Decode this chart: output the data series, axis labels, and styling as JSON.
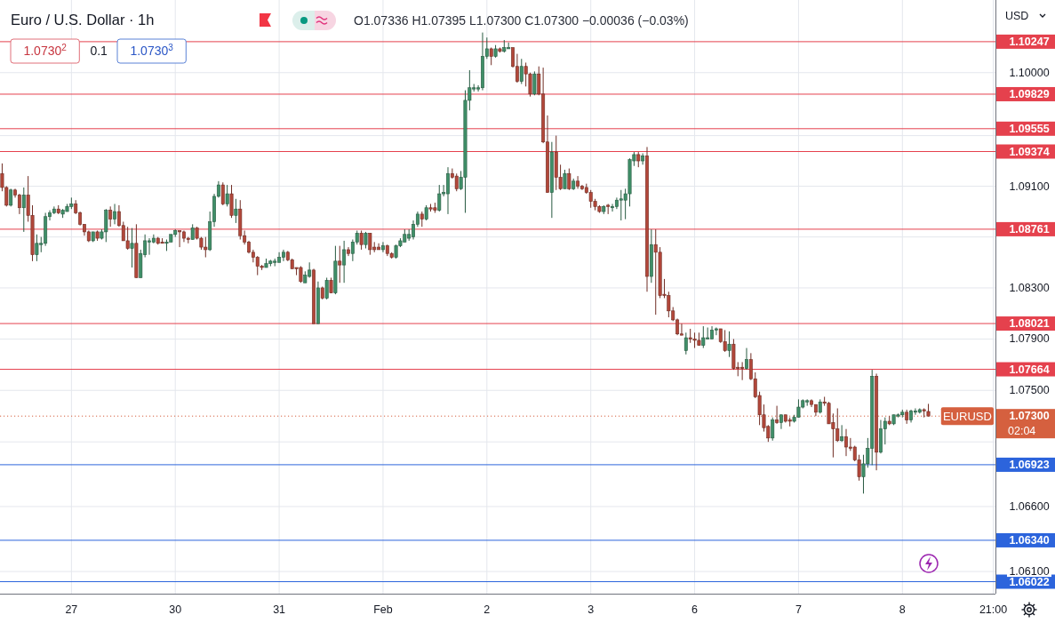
{
  "chart_data": {
    "type": "candlestick",
    "title": "Euro / U.S. Dollar · 1h",
    "subtitle": "O1.07336 H1.07395 L1.07300 C1.07300 −0.00036 (−0.03%)",
    "ylabel": "USD",
    "categories": [
      null,
      null,
      null,
      null,
      null,
      null,
      null,
      null,
      null,
      null,
      null,
      null,
      null,
      null,
      null,
      null,
      "27",
      null,
      null,
      null,
      null,
      null,
      null,
      null,
      null,
      null,
      null,
      null,
      null,
      null,
      null,
      null,
      null,
      null,
      null,
      null,
      null,
      null,
      null,
      null,
      "30",
      null,
      null,
      null,
      null,
      null,
      null,
      null,
      null,
      null,
      null,
      null,
      null,
      null,
      null,
      null,
      null,
      null,
      null,
      null,
      null,
      null,
      null,
      null,
      "31",
      null,
      null,
      null,
      null,
      null,
      null,
      null,
      null,
      null,
      null,
      null,
      null,
      null,
      null,
      null,
      null,
      null,
      null,
      null,
      null,
      null,
      null,
      null,
      "Feb",
      null,
      null,
      null,
      null,
      null,
      null,
      null,
      null,
      null,
      null,
      null,
      null,
      null,
      null,
      null,
      null,
      null,
      null,
      null,
      null,
      null,
      null,
      null,
      "2",
      null,
      null,
      null,
      null,
      null,
      null,
      null,
      null,
      null,
      null,
      null,
      null,
      null,
      null,
      null,
      null,
      null,
      null,
      null,
      null,
      null,
      null,
      null,
      "3",
      null,
      null,
      null,
      null,
      null,
      null,
      null,
      null,
      null,
      null,
      null,
      null,
      null,
      null,
      null,
      null,
      null,
      null,
      null,
      null,
      null,
      null,
      null,
      "6",
      null,
      null,
      null,
      null,
      null,
      null,
      null,
      null,
      null,
      null,
      null,
      null,
      null,
      null,
      null,
      null,
      null,
      null,
      null,
      null,
      null,
      null,
      null,
      "7",
      null,
      null,
      null,
      null,
      null,
      null,
      null,
      null,
      null,
      null,
      null,
      null,
      null,
      null,
      null,
      null,
      null,
      null,
      null,
      null,
      null,
      null,
      null,
      "8",
      null,
      null,
      null,
      null,
      null,
      null,
      null,
      null,
      null,
      null,
      null,
      null,
      null,
      null,
      null,
      null,
      null,
      null,
      null,
      null,
      "21:00"
    ],
    "ohlc": [
      [
        1.092,
        1.0928,
        1.0906,
        1.0909
      ],
      [
        1.0909,
        1.091,
        1.0894,
        1.0895
      ],
      [
        1.0895,
        1.0908,
        1.0894,
        1.0907
      ],
      [
        1.0907,
        1.0908,
        1.0901,
        1.0903
      ],
      [
        1.0903,
        1.0904,
        1.0888,
        1.0893
      ],
      [
        1.0893,
        1.0909,
        1.0874,
        1.0903
      ],
      [
        1.0903,
        1.0918,
        1.0882,
        1.0887
      ],
      [
        1.0887,
        1.0895,
        1.0851,
        1.0856
      ],
      [
        1.0856,
        1.0872,
        1.0851,
        1.0865
      ],
      [
        1.0864,
        1.087,
        1.0858,
        1.0865
      ],
      [
        1.0865,
        1.0889,
        1.0863,
        1.0886
      ],
      [
        1.0886,
        1.0891,
        1.0883,
        1.0889
      ],
      [
        1.0889,
        1.0894,
        1.0888,
        1.0892
      ],
      [
        1.0892,
        1.0895,
        1.0888,
        1.0889
      ],
      [
        1.0888,
        1.0892,
        1.0885,
        1.0891
      ],
      [
        1.089,
        1.0896,
        1.089,
        1.0894
      ],
      [
        1.0894,
        1.0901,
        1.0892,
        1.0896
      ],
      [
        1.0896,
        1.0899,
        1.0888,
        1.0889
      ],
      [
        1.0889,
        1.089,
        1.0879,
        1.088
      ],
      [
        1.088,
        1.088,
        1.0871,
        1.0874
      ],
      [
        1.0874,
        1.0875,
        1.0866,
        1.0867
      ],
      [
        1.0867,
        1.0874,
        1.0866,
        1.0874
      ],
      [
        1.0874,
        1.0875,
        1.0867,
        1.0869
      ],
      [
        1.0869,
        1.0876,
        1.0868,
        1.0874
      ],
      [
        1.0874,
        1.0892,
        1.0866,
        1.0891
      ],
      [
        1.0891,
        1.0894,
        1.0878,
        1.0884
      ],
      [
        1.0884,
        1.0896,
        1.088,
        1.089
      ],
      [
        1.089,
        1.0895,
        1.0878,
        1.0879
      ],
      [
        1.0879,
        1.0882,
        1.0867,
        1.0867
      ],
      [
        1.0867,
        1.0878,
        1.086,
        1.0861
      ],
      [
        1.0861,
        1.0877,
        1.0846,
        1.0865
      ],
      [
        1.0865,
        1.088,
        1.0838,
        1.0838
      ],
      [
        1.0838,
        1.086,
        1.0838,
        1.0857
      ],
      [
        1.0856,
        1.0872,
        1.0854,
        1.0867
      ],
      [
        1.0866,
        1.0869,
        1.0856,
        1.0867
      ],
      [
        1.0866,
        1.0872,
        1.0865,
        1.0869
      ],
      [
        1.0869,
        1.087,
        1.0864,
        1.0865
      ],
      [
        1.0866,
        1.0869,
        1.0865,
        1.0865
      ],
      [
        1.0865,
        1.0868,
        1.0859,
        1.0866
      ],
      [
        1.0866,
        1.0872,
        1.0866,
        1.0872
      ],
      [
        1.0872,
        1.0876,
        1.087,
        1.0875
      ],
      [
        1.0875,
        1.0875,
        1.0862,
        1.0874
      ],
      [
        1.0874,
        1.0875,
        1.0866,
        1.0869
      ],
      [
        1.0869,
        1.087,
        1.0865,
        1.0868
      ],
      [
        1.0868,
        1.088,
        1.0868,
        1.0877
      ],
      [
        1.0877,
        1.0878,
        1.0868,
        1.0869
      ],
      [
        1.0869,
        1.087,
        1.086,
        1.0862
      ],
      [
        1.0862,
        1.087,
        1.0854,
        1.086
      ],
      [
        1.086,
        1.089,
        1.0859,
        1.0882
      ],
      [
        1.0882,
        1.0904,
        1.0878,
        1.0902
      ],
      [
        1.0902,
        1.0914,
        1.0901,
        1.0911
      ],
      [
        1.0911,
        1.0913,
        1.0895,
        1.0896
      ],
      [
        1.0896,
        1.0911,
        1.0894,
        1.0904
      ],
      [
        1.0904,
        1.0911,
        1.0885,
        1.0887
      ],
      [
        1.0887,
        1.09,
        1.0881,
        1.0892
      ],
      [
        1.0892,
        1.0899,
        1.0868,
        1.0871
      ],
      [
        1.0871,
        1.0875,
        1.0864,
        1.0866
      ],
      [
        1.0866,
        1.0867,
        1.0857,
        1.0858
      ],
      [
        1.0858,
        1.086,
        1.085,
        1.0854
      ],
      [
        1.0854,
        1.0855,
        1.084,
        1.0847
      ],
      [
        1.0847,
        1.0848,
        1.0844,
        1.0846
      ],
      [
        1.0846,
        1.0853,
        1.0846,
        1.0849
      ],
      [
        1.0849,
        1.0852,
        1.0847,
        1.0851
      ],
      [
        1.085,
        1.0853,
        1.0847,
        1.0851
      ],
      [
        1.085,
        1.0858,
        1.085,
        1.0854
      ],
      [
        1.0854,
        1.086,
        1.0851,
        1.0858
      ],
      [
        1.0858,
        1.0859,
        1.0851,
        1.0852
      ],
      [
        1.0852,
        1.0853,
        1.0845,
        1.0845
      ],
      [
        1.0846,
        1.0846,
        1.084,
        1.0845
      ],
      [
        1.0846,
        1.0847,
        1.0834,
        1.0835
      ],
      [
        1.0834,
        1.0843,
        1.0834,
        1.084
      ],
      [
        1.0839,
        1.085,
        1.0838,
        1.0844
      ],
      [
        1.0844,
        1.0845,
        1.0802,
        1.0802
      ],
      [
        1.0802,
        1.0835,
        1.0802,
        1.083
      ],
      [
        1.083,
        1.0831,
        1.0821,
        1.0822
      ],
      [
        1.0822,
        1.0838,
        1.0821,
        1.0836
      ],
      [
        1.0836,
        1.0838,
        1.0826,
        1.0826
      ],
      [
        1.0826,
        1.0863,
        1.0825,
        1.0851
      ],
      [
        1.0851,
        1.0863,
        1.0834,
        1.0848
      ],
      [
        1.0848,
        1.0867,
        1.0834,
        1.086
      ],
      [
        1.086,
        1.0862,
        1.0855,
        1.0857
      ],
      [
        1.0857,
        1.0868,
        1.0851,
        1.0866
      ],
      [
        1.0866,
        1.0875,
        1.0864,
        1.0873
      ],
      [
        1.0873,
        1.0875,
        1.086,
        1.0864
      ],
      [
        1.0864,
        1.0874,
        1.0861,
        1.0873
      ],
      [
        1.0873,
        1.0873,
        1.0856,
        1.086
      ],
      [
        1.0862,
        1.0866,
        1.0858,
        1.086
      ],
      [
        1.0862,
        1.0865,
        1.086,
        1.086
      ],
      [
        1.086,
        1.0866,
        1.0858,
        1.0863
      ],
      [
        1.0863,
        1.0864,
        1.0855,
        1.0857
      ],
      [
        1.0857,
        1.0858,
        1.0853,
        1.0854
      ],
      [
        1.0854,
        1.0864,
        1.0853,
        1.0863
      ],
      [
        1.0863,
        1.0869,
        1.0862,
        1.0867
      ],
      [
        1.0866,
        1.0876,
        1.0866,
        1.0872
      ],
      [
        1.0869,
        1.0876,
        1.0867,
        1.0872
      ],
      [
        1.087,
        1.0883,
        1.0868,
        1.088
      ],
      [
        1.088,
        1.089,
        1.0878,
        1.0888
      ],
      [
        1.0888,
        1.089,
        1.0878,
        1.0884
      ],
      [
        1.0884,
        1.0895,
        1.0883,
        1.0893
      ],
      [
        1.0893,
        1.0896,
        1.089,
        1.0892
      ],
      [
        1.0893,
        1.0897,
        1.0889,
        1.0891
      ],
      [
        1.0891,
        1.0911,
        1.089,
        1.0904
      ],
      [
        1.0904,
        1.0911,
        1.0902,
        1.0905
      ],
      [
        1.0904,
        1.0925,
        1.0888,
        1.092
      ],
      [
        1.092,
        1.0924,
        1.0916,
        1.0917
      ],
      [
        1.0918,
        1.092,
        1.0906,
        1.0908
      ],
      [
        1.0908,
        1.0922,
        1.0907,
        1.0917
      ],
      [
        1.0917,
        1.0986,
        1.0889,
        1.0978
      ],
      [
        1.0978,
        1.1002,
        1.097,
        1.0988
      ],
      [
        1.0987,
        1.0991,
        1.0985,
        1.0988
      ],
      [
        1.0987,
        1.099,
        1.0985,
        1.0988
      ],
      [
        1.0988,
        1.1032,
        1.0986,
        1.1013
      ],
      [
        1.1013,
        1.1028,
        1.1011,
        1.1019
      ],
      [
        1.1019,
        1.102,
        1.1006,
        1.1013
      ],
      [
        1.1013,
        1.1022,
        1.1012,
        1.1019
      ],
      [
        1.1019,
        1.102,
        1.1016,
        1.1017
      ],
      [
        1.1017,
        1.1026,
        1.1016,
        1.102
      ],
      [
        1.1019,
        1.1024,
        1.1019,
        1.102
      ],
      [
        1.102,
        1.102,
        1.1004,
        1.1005
      ],
      [
        1.1005,
        1.1015,
        1.0992,
        1.0993
      ],
      [
        1.0993,
        1.1011,
        1.0991,
        1.1005
      ],
      [
        1.1005,
        1.1008,
        1.0989,
        1.0999
      ],
      [
        1.0999,
        1.1,
        1.0981,
        1.0983
      ],
      [
        1.0983,
        1.1001,
        1.0982,
        1.0999
      ],
      [
        1.0999,
        1.1005,
        1.0982,
        1.0983
      ],
      [
        1.0983,
        1.1004,
        1.0944,
        1.0945
      ],
      [
        1.0945,
        1.0966,
        1.0905,
        1.0905
      ],
      [
        1.0905,
        1.0945,
        1.0885,
        1.0937
      ],
      [
        1.0937,
        1.095,
        1.0907,
        1.0917
      ],
      [
        1.0917,
        1.0927,
        1.0907,
        1.0908
      ],
      [
        1.0908,
        1.0923,
        1.0908,
        1.092
      ],
      [
        1.092,
        1.0924,
        1.0907,
        1.0908
      ],
      [
        1.0908,
        1.0916,
        1.0907,
        1.0914
      ],
      [
        1.0914,
        1.0918,
        1.0908,
        1.091
      ],
      [
        1.091,
        1.0911,
        1.0907,
        1.0908
      ],
      [
        1.0909,
        1.0912,
        1.0904,
        1.0905
      ],
      [
        1.0905,
        1.0907,
        1.0893,
        1.0898
      ],
      [
        1.0898,
        1.09,
        1.0891,
        1.0894
      ],
      [
        1.0894,
        1.0895,
        1.0889,
        1.089
      ],
      [
        1.089,
        1.0895,
        1.0888,
        1.0894
      ],
      [
        1.0895,
        1.0896,
        1.0888,
        1.0894
      ],
      [
        1.0893,
        1.0896,
        1.089,
        1.0894
      ],
      [
        1.0894,
        1.0901,
        1.0892,
        1.0899
      ],
      [
        1.0899,
        1.0907,
        1.0883,
        1.09
      ],
      [
        1.0899,
        1.0908,
        1.0884,
        1.0904
      ],
      [
        1.0904,
        1.0932,
        1.0894,
        1.0931
      ],
      [
        1.093,
        1.0937,
        1.0926,
        1.0935
      ],
      [
        1.0935,
        1.0937,
        1.0925,
        1.093
      ],
      [
        1.093,
        1.0936,
        1.0927,
        1.0934
      ],
      [
        1.0934,
        1.0941,
        1.0827,
        1.0839
      ],
      [
        1.0839,
        1.0876,
        1.0834,
        1.0864
      ],
      [
        1.0864,
        1.0876,
        1.0809,
        1.0858
      ],
      [
        1.0858,
        1.0862,
        1.0822,
        1.0824
      ],
      [
        1.0825,
        1.0837,
        1.0822,
        1.0824
      ],
      [
        1.0824,
        1.0827,
        1.0807,
        1.0812
      ],
      [
        1.0812,
        1.0815,
        1.0804,
        1.0805
      ],
      [
        1.0805,
        1.0806,
        1.0793,
        1.0794
      ],
      [
        1.0794,
        1.0802,
        1.0793,
        1.0793
      ],
      [
        1.0781,
        1.0795,
        1.0778,
        1.0791
      ],
      [
        1.0791,
        1.0798,
        1.0787,
        1.079
      ],
      [
        1.079,
        1.0795,
        1.0783,
        1.0789
      ],
      [
        1.0789,
        1.0795,
        1.0785,
        1.0785
      ],
      [
        1.0785,
        1.08,
        1.0783,
        1.0791
      ],
      [
        1.079,
        1.0799,
        1.079,
        1.0791
      ],
      [
        1.079,
        1.08,
        1.079,
        1.0797
      ],
      [
        1.0797,
        1.0799,
        1.0793,
        1.0798
      ],
      [
        1.0798,
        1.0798,
        1.0787,
        1.0788
      ],
      [
        1.0788,
        1.0797,
        1.078,
        1.0781
      ],
      [
        1.0781,
        1.0796,
        1.0776,
        1.0786
      ],
      [
        1.0786,
        1.079,
        1.0766,
        1.0767
      ],
      [
        1.0768,
        1.0772,
        1.0761,
        1.0767
      ],
      [
        1.0768,
        1.0772,
        1.0758,
        1.0767
      ],
      [
        1.0767,
        1.0783,
        1.0766,
        1.0774
      ],
      [
        1.0774,
        1.0779,
        1.0758,
        1.0759
      ],
      [
        1.0759,
        1.0764,
        1.0744,
        1.0745
      ],
      [
        1.0746,
        1.0749,
        1.0723,
        1.0731
      ],
      [
        1.0731,
        1.0739,
        1.0718,
        1.0721
      ],
      [
        1.0722,
        1.0723,
        1.071,
        1.0713
      ],
      [
        1.0713,
        1.0729,
        1.0711,
        1.0727
      ],
      [
        1.0727,
        1.0738,
        1.0724,
        1.0725
      ],
      [
        1.0725,
        1.0731,
        1.072,
        1.0731
      ],
      [
        1.0731,
        1.0731,
        1.0725,
        1.0726
      ],
      [
        1.0727,
        1.0729,
        1.0722,
        1.0726
      ],
      [
        1.0726,
        1.0731,
        1.0725,
        1.0729
      ],
      [
        1.0729,
        1.0743,
        1.0729,
        1.0737
      ],
      [
        1.0737,
        1.0743,
        1.0736,
        1.0742
      ],
      [
        1.0741,
        1.0743,
        1.0738,
        1.0742
      ],
      [
        1.0742,
        1.0743,
        1.0737,
        1.0739
      ],
      [
        1.0739,
        1.0739,
        1.073,
        1.0733
      ],
      [
        1.0733,
        1.0743,
        1.0732,
        1.0741
      ],
      [
        1.0741,
        1.0745,
        1.0738,
        1.074
      ],
      [
        1.074,
        1.0741,
        1.0724,
        1.0724
      ],
      [
        1.0725,
        1.0732,
        1.0698,
        1.072
      ],
      [
        1.072,
        1.0736,
        1.071,
        1.0711
      ],
      [
        1.0711,
        1.0723,
        1.071,
        1.0714
      ],
      [
        1.0714,
        1.072,
        1.0699,
        1.0706
      ],
      [
        1.0706,
        1.0713,
        1.0703,
        1.0705
      ],
      [
        1.0706,
        1.0707,
        1.0695,
        1.0696
      ],
      [
        1.0696,
        1.07,
        1.068,
        1.0683
      ],
      [
        1.0683,
        1.07,
        1.067,
        1.0693
      ],
      [
        1.0693,
        1.0713,
        1.069,
        1.0705
      ],
      [
        1.0705,
        1.0766,
        1.0692,
        1.0761
      ],
      [
        1.0761,
        1.0763,
        1.0688,
        1.0702
      ],
      [
        1.0702,
        1.0727,
        1.0701,
        1.072
      ],
      [
        1.072,
        1.0729,
        1.0708,
        1.0726
      ],
      [
        1.0726,
        1.073,
        1.0723,
        1.0724
      ],
      [
        1.0724,
        1.0731,
        1.0723,
        1.0731
      ],
      [
        1.073,
        1.0732,
        1.0729,
        1.0731
      ],
      [
        1.0731,
        1.0735,
        1.0729,
        1.0733
      ],
      [
        1.0733,
        1.0735,
        1.0724,
        1.0727
      ],
      [
        1.0727,
        1.0735,
        1.0725,
        1.0734
      ],
      [
        1.0733,
        1.0736,
        1.0731,
        1.0734
      ],
      [
        1.0733,
        1.0736,
        1.0732,
        1.0735
      ],
      [
        1.0735,
        1.0736,
        1.0729,
        1.0734
      ],
      [
        1.07336,
        1.07395,
        1.073,
        1.073
      ],
      null,
      null,
      null,
      null,
      null,
      null,
      null,
      null,
      null,
      null,
      null,
      null,
      null,
      null,
      null
    ],
    "colors": [
      "#b2473a",
      "#b2473a",
      "#3f8f68",
      "#b2473a",
      "#b2473a",
      "#3f8f68",
      "#b2473a",
      "#b2473a",
      "#3f8f68",
      "#3f8f68",
      "#3f8f68",
      "#3f8f68",
      "#3f8f68",
      "#b2473a",
      "#3f8f68",
      "#3f8f68",
      "#3f8f68",
      "#b2473a",
      "#b2473a",
      "#b2473a",
      "#b2473a",
      "#3f8f68",
      "#b2473a",
      "#3f8f68",
      "#3f8f68",
      "#b2473a",
      "#3f8f68",
      "#b2473a",
      "#b2473a",
      "#b2473a",
      "#3f8f68",
      "#b2473a",
      "#3f8f68",
      "#3f8f68",
      "#3f8f68",
      "#3f8f68",
      "#b2473a",
      "#b2473a",
      "#3f8f68",
      "#3f8f68",
      "#3f8f68",
      "#b2473a",
      "#b2473a",
      "#b2473a",
      "#3f8f68",
      "#b2473a",
      "#b2473a",
      "#b2473a",
      "#3f8f68",
      "#3f8f68",
      "#3f8f68",
      "#b2473a",
      "#3f8f68",
      "#b2473a",
      "#3f8f68",
      "#b2473a",
      "#b2473a",
      "#b2473a",
      "#b2473a",
      "#b2473a",
      "#b2473a",
      "#3f8f68",
      "#3f8f68",
      "#3f8f68",
      "#3f8f68",
      "#3f8f68",
      "#b2473a",
      "#b2473a",
      "#b2473a",
      "#b2473a",
      "#3f8f68",
      "#3f8f68",
      "#b2473a",
      "#3f8f68",
      "#b2473a",
      "#3f8f68",
      "#b2473a",
      "#3f8f68",
      "#b2473a",
      "#3f8f68",
      "#b2473a",
      "#3f8f68",
      "#3f8f68",
      "#b2473a",
      "#3f8f68",
      "#b2473a",
      "#b2473a",
      "#b2473a",
      "#3f8f68",
      "#b2473a",
      "#b2473a",
      "#3f8f68",
      "#3f8f68",
      "#3f8f68",
      "#3f8f68",
      "#3f8f68",
      "#3f8f68",
      "#b2473a",
      "#3f8f68",
      "#b2473a",
      "#b2473a",
      "#3f8f68",
      "#3f8f68",
      "#3f8f68",
      "#b2473a",
      "#b2473a",
      "#3f8f68",
      "#3f8f68",
      "#3f8f68",
      "#3f8f68",
      "#3f8f68",
      "#3f8f68",
      "#3f8f68",
      "#b2473a",
      "#3f8f68",
      "#b2473a",
      "#3f8f68",
      "#3f8f68",
      "#b2473a",
      "#b2473a",
      "#3f8f68",
      "#b2473a",
      "#b2473a",
      "#3f8f68",
      "#b2473a",
      "#b2473a",
      "#b2473a",
      "#3f8f68",
      "#b2473a",
      "#b2473a",
      "#3f8f68",
      "#b2473a",
      "#3f8f68",
      "#b2473a",
      "#b2473a",
      "#b2473a",
      "#b2473a",
      "#b2473a",
      "#b2473a",
      "#3f8f68",
      "#b2473a",
      "#3f8f68",
      "#3f8f68",
      "#3f8f68",
      "#3f8f68",
      "#3f8f68",
      "#3f8f68",
      "#b2473a",
      "#3f8f68",
      "#b2473a",
      "#3f8f68",
      "#b2473a",
      "#b2473a",
      "#b2473a",
      "#b2473a",
      "#b2473a",
      "#b2473a",
      "#b2473a",
      "#3f8f68",
      "#b2473a",
      "#b2473a",
      "#b2473a",
      "#3f8f68",
      "#3f8f68",
      "#3f8f68",
      "#3f8f68",
      "#b2473a",
      "#b2473a",
      "#3f8f68",
      "#b2473a",
      "#b2473a",
      "#b2473a",
      "#3f8f68",
      "#b2473a",
      "#b2473a",
      "#b2473a",
      "#b2473a",
      "#b2473a",
      "#3f8f68",
      "#b2473a",
      "#3f8f68",
      "#b2473a",
      "#b2473a",
      "#3f8f68",
      "#3f8f68",
      "#3f8f68",
      "#3f8f68",
      "#b2473a",
      "#b2473a",
      "#3f8f68",
      "#b2473a",
      "#b2473a",
      "#b2473a",
      "#b2473a",
      "#3f8f68",
      "#b2473a",
      "#b2473a",
      "#b2473a",
      "#b2473a",
      "#3f8f68",
      "#3f8f68",
      "#3f8f68",
      "#b2473a",
      "#3f8f68",
      "#3f8f68",
      "#b2473a",
      "#3f8f68",
      "#3f8f68",
      "#3f8f68",
      "#b2473a",
      "#3f8f68",
      "#3f8f68",
      "#3f8f68",
      "#b2473a",
      "#b2473a",
      null,
      null,
      null,
      null,
      null,
      null,
      null,
      null,
      null,
      null,
      null,
      null,
      null,
      null,
      null
    ],
    "ylim": [
      1.0593,
      1.1058
    ],
    "log": true,
    "yticks": [
      {
        "value": 1.1,
        "label": "1.10000"
      },
      {
        "value": 1.095,
        "label": null
      },
      {
        "value": 1.091,
        "label": "1.09100"
      },
      {
        "value": 1.087,
        "label": null
      },
      {
        "value": 1.083,
        "label": "1.08300"
      },
      {
        "value": 1.079,
        "label": "1.07900"
      },
      {
        "value": 1.075,
        "label": "1.07500"
      },
      {
        "value": 1.071,
        "label": null
      },
      {
        "value": 1.066,
        "label": "1.06600"
      },
      {
        "value": 1.061,
        "label": "1.06100"
      }
    ],
    "grid": true,
    "ref_lines": [
      {
        "axis": "y",
        "value": 1.10247,
        "label": "1.10247",
        "color": "#e5414d"
      },
      {
        "axis": "y",
        "value": 1.09829,
        "label": "1.09829",
        "color": "#e5414d"
      },
      {
        "axis": "y",
        "value": 1.09555,
        "label": "1.09555",
        "color": "#e5414d"
      },
      {
        "axis": "y",
        "value": 1.09374,
        "label": "1.09374",
        "color": "#e5414d"
      },
      {
        "axis": "y",
        "value": 1.08761,
        "label": "1.08761",
        "color": "#e5414d"
      },
      {
        "axis": "y",
        "value": 1.08021,
        "label": "1.08021",
        "color": "#e5414d"
      },
      {
        "axis": "y",
        "value": 1.07664,
        "label": "1.07664",
        "color": "#e5414d"
      },
      {
        "axis": "y",
        "value": 1.073,
        "label": "1.07300",
        "color": "#d5603f",
        "line_style": "dotted"
      },
      {
        "axis": "y",
        "value": 1.06923,
        "label": "1.06923",
        "color": "#2c64dc"
      },
      {
        "axis": "y",
        "value": 1.0634,
        "label": "1.06340",
        "color": "#2c64dc"
      },
      {
        "axis": "y",
        "value": 1.06022,
        "label": "1.06022",
        "color": "#2c64dc"
      }
    ],
    "annotations": [
      "1.0730$^{2}$",
      "0.1",
      "1.0730$^{3}$",
      "02:04",
      {
        "text": "EURUSD",
        "y": 1.073
      }
    ]
  }
}
